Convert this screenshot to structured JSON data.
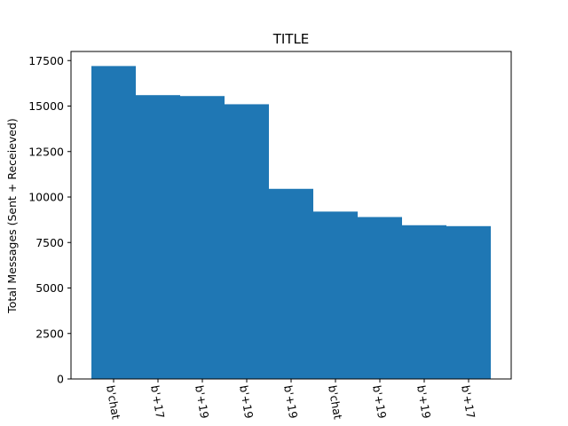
{
  "chart_data": {
    "type": "bar",
    "title": "TITLE",
    "xlabel": "",
    "ylabel": "Total Messages (Sent + Receieved)",
    "categories": [
      "b'chat",
      "b'+17",
      "b'+19",
      "b'+19",
      "b'+19",
      "b'chat",
      "b'+19",
      "b'+19",
      "b'+17"
    ],
    "values": [
      17200,
      15600,
      15550,
      15100,
      10450,
      9200,
      8900,
      8450,
      8400
    ],
    "ylim": [
      0,
      18000
    ],
    "yticks": [
      0,
      2500,
      5000,
      7500,
      10000,
      12500,
      15000,
      17500
    ],
    "ytick_labels": [
      "0",
      "2500",
      "5000",
      "7500",
      "10000",
      "12500",
      "15000",
      "17500"
    ],
    "bar_color": "#1f77b4",
    "grid": false,
    "legend": "none"
  }
}
